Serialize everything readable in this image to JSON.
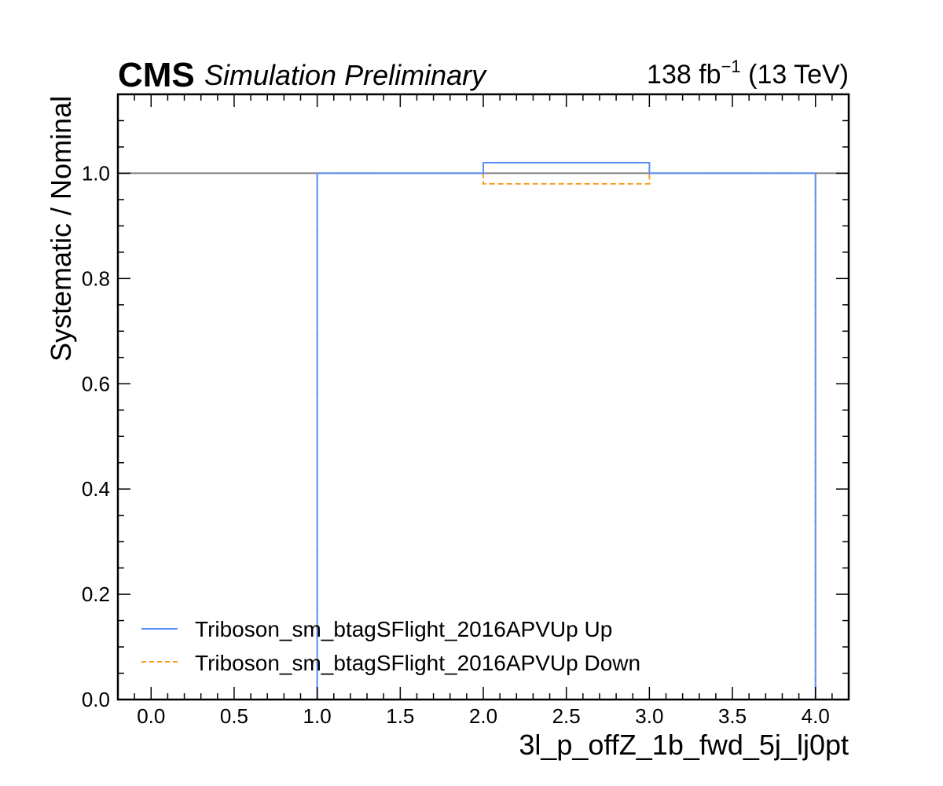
{
  "header": {
    "experiment": "CMS",
    "status": "Simulation Preliminary",
    "lumi": "138 fb",
    "lumi_exp": "−1",
    "energy": " (13 TeV)"
  },
  "chart_data": {
    "type": "line",
    "drawstyle": "step",
    "xlabel": "3l_p_offZ_1b_fwd_5j_lj0pt",
    "ylabel": "Systematic / Nominal",
    "xlim": [
      -0.2,
      4.2
    ],
    "ylim": [
      0.0,
      1.15
    ],
    "xticks": [
      0.0,
      0.5,
      1.0,
      1.5,
      2.0,
      2.5,
      3.0,
      3.5,
      4.0
    ],
    "xtick_labels": [
      "0.0",
      "0.5",
      "1.0",
      "1.5",
      "2.0",
      "2.5",
      "3.0",
      "3.5",
      "4.0"
    ],
    "yticks": [
      0.0,
      0.2,
      0.4,
      0.6,
      0.8,
      1.0
    ],
    "ytick_labels": [
      "0.0",
      "0.2",
      "0.4",
      "0.6",
      "0.8",
      "1.0"
    ],
    "reference_line": {
      "y": 1.0,
      "color": "#808080"
    },
    "bin_edges": [
      1.0,
      2.0,
      3.0,
      4.0
    ],
    "series": [
      {
        "name": "Triboson_sm_btagSFlight_2016APVUp Up",
        "values": [
          1.0,
          1.02,
          1.0
        ],
        "color": "#5790fc",
        "linestyle": "solid"
      },
      {
        "name": "Triboson_sm_btagSFlight_2016APVUp Down",
        "values": [
          1.0,
          0.98,
          1.0
        ],
        "color": "#f89c20",
        "linestyle": "dashed"
      }
    ],
    "legend_position": "lower-left",
    "grid": false
  }
}
